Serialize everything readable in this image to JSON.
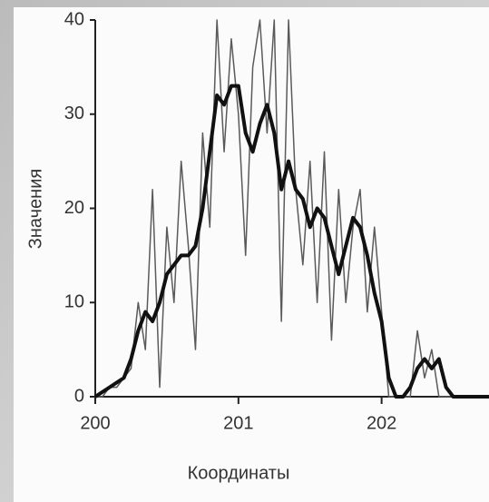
{
  "chart_data": {
    "type": "line",
    "xlabel": "Координаты",
    "ylabel": "Значения",
    "x": [
      200,
      200.05,
      200.1,
      200.15,
      200.2,
      200.25,
      200.3,
      200.35,
      200.4,
      200.45,
      200.5,
      200.55,
      200.6,
      200.65,
      200.7,
      200.75,
      200.8,
      200.85,
      200.9,
      200.95,
      201,
      201.05,
      201.1,
      201.15,
      201.2,
      201.25,
      201.3,
      201.35,
      201.4,
      201.45,
      201.5,
      201.55,
      201.6,
      201.65,
      201.7,
      201.75,
      201.8,
      201.85,
      201.9,
      201.95,
      202,
      202.05,
      202.1,
      202.15,
      202.2,
      202.25,
      202.3,
      202.35,
      202.4,
      202.45,
      202.5,
      202.55,
      202.6,
      202.65,
      202.7,
      202.75
    ],
    "series": [
      {
        "color": "#5a5a5a",
        "linewidth": 1.5,
        "values": [
          0,
          0,
          1,
          1,
          2,
          3,
          10,
          5,
          22,
          1,
          18,
          10,
          25,
          16,
          5,
          28,
          18,
          40,
          26,
          38,
          30,
          15,
          35,
          40,
          28,
          40,
          8,
          40,
          22,
          14,
          25,
          10,
          26,
          6,
          22,
          10,
          18,
          22,
          9,
          18,
          9,
          0,
          0,
          0,
          0,
          7,
          2,
          5,
          0,
          0,
          0,
          0,
          0,
          0,
          0,
          0
        ]
      },
      {
        "color": "#111111",
        "linewidth": 4,
        "values": [
          0,
          0.5,
          1,
          1.5,
          2,
          4,
          7,
          9,
          8,
          10,
          13,
          14,
          15,
          15,
          16,
          20,
          26,
          32,
          31,
          33,
          33,
          28,
          26,
          29,
          31,
          28,
          22,
          25,
          22,
          21,
          18,
          20,
          19,
          16,
          13,
          16,
          19,
          18,
          15,
          11,
          8,
          2,
          0,
          0,
          1,
          3,
          4,
          3,
          4,
          1,
          0,
          0,
          0,
          0,
          0,
          0
        ]
      }
    ],
    "xlim": [
      200,
      202.75
    ],
    "ylim": [
      0,
      40
    ],
    "xticks": [
      200,
      201,
      202
    ],
    "yticks": [
      0,
      10,
      20,
      30,
      40
    ]
  }
}
